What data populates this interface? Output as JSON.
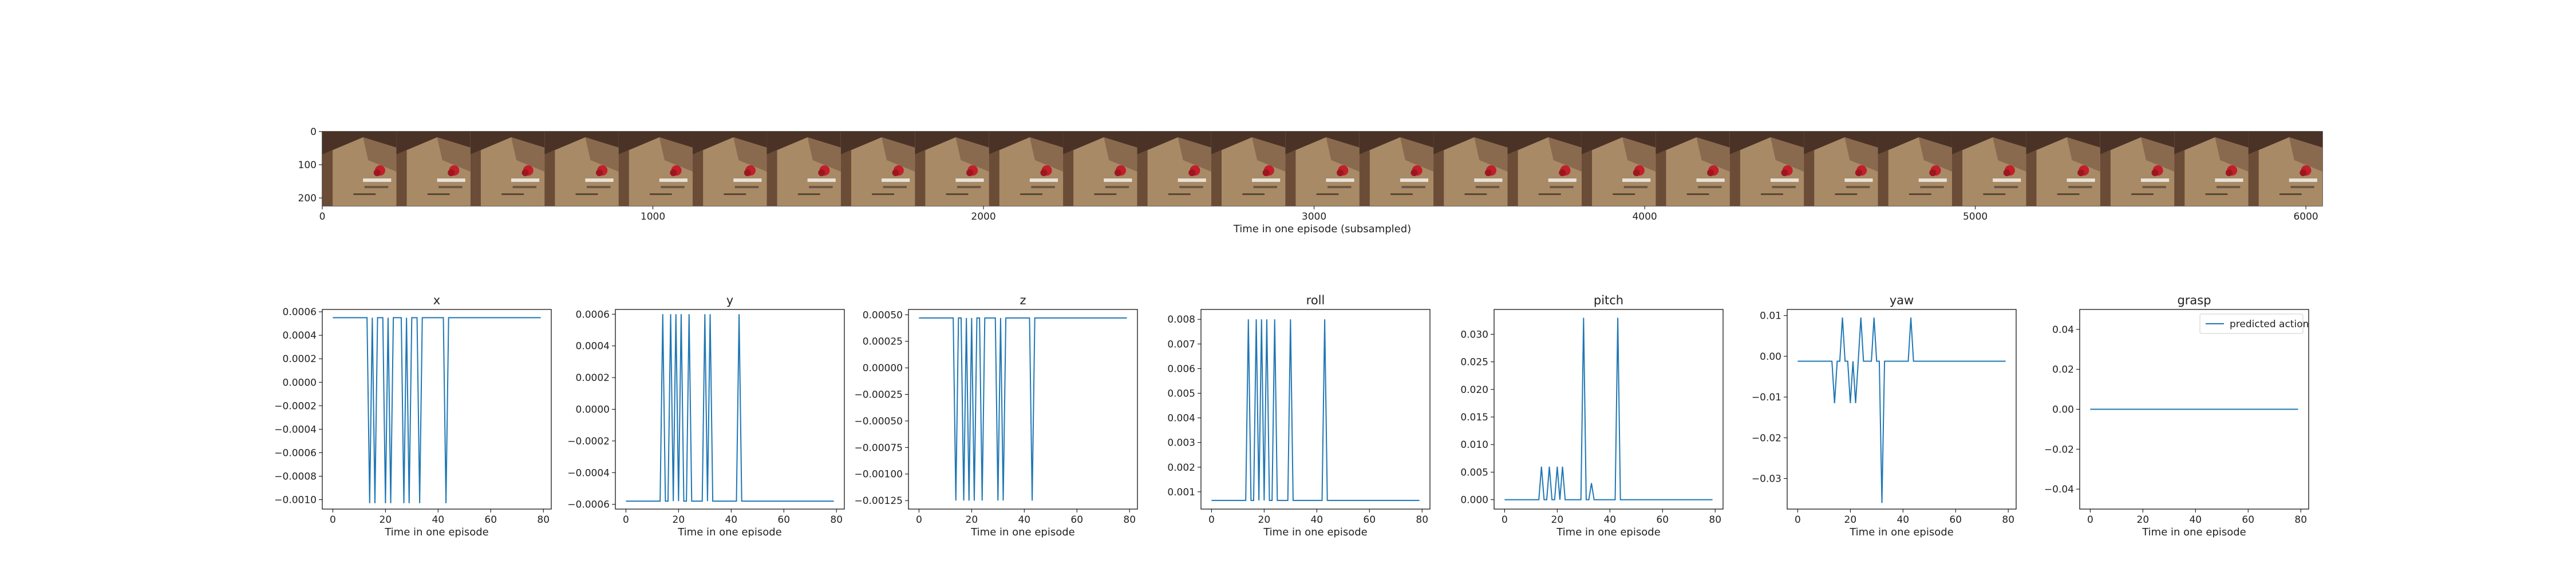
{
  "chart_data": [
    {
      "type": "image_strip",
      "xlabel": "Time in one episode (subsampled)",
      "xticks": [
        0,
        1000,
        2000,
        3000,
        4000,
        5000,
        6000
      ],
      "yticks": [
        0,
        100,
        200
      ],
      "xlim": [
        0,
        6050
      ],
      "ylim": [
        224,
        0
      ],
      "frames": 27,
      "colors": {
        "table": "#a88a66",
        "wall": "#4a3326",
        "object": "#c21f2a",
        "shelf": "#e9e2d6"
      }
    },
    {
      "type": "line",
      "title": "x",
      "xlabel": "Time in one episode",
      "x_range": [
        0,
        79
      ],
      "xlim": [
        -4,
        83
      ],
      "ylim": [
        -0.00108,
        0.00062
      ],
      "yticks": [
        0.0006,
        0.0004,
        0.0002,
        0.0,
        -0.0002,
        -0.0004,
        -0.0006,
        -0.0008,
        -0.001
      ],
      "ytick_labels": [
        "0.0006",
        "0.0004",
        "0.0002",
        "0.0000",
        "−0.0002",
        "−0.0004",
        "−0.0006",
        "−0.0008",
        "−0.0010"
      ],
      "xticks": [
        0,
        20,
        40,
        60,
        80
      ],
      "series": [
        {
          "baseline": 0.00055,
          "spikes": [
            [
              14,
              -0.00103
            ],
            [
              16,
              -0.00103
            ],
            [
              20,
              -0.00103
            ],
            [
              22,
              -0.00103
            ],
            [
              27,
              -0.00103
            ],
            [
              29,
              -0.00103
            ],
            [
              33,
              -0.00103
            ],
            [
              43,
              -0.00103
            ]
          ]
        }
      ]
    },
    {
      "type": "line",
      "title": "y",
      "xlabel": "Time in one episode",
      "x_range": [
        0,
        79
      ],
      "xlim": [
        -4,
        83
      ],
      "ylim": [
        -0.00063,
        0.00063
      ],
      "yticks": [
        0.0006,
        0.0004,
        0.0002,
        0.0,
        -0.0002,
        -0.0004,
        -0.0006
      ],
      "ytick_labels": [
        "0.0006",
        "0.0004",
        "0.0002",
        "0.0000",
        "−0.0002",
        "−0.0004",
        "−0.0006"
      ],
      "xticks": [
        0,
        20,
        40,
        60,
        80
      ],
      "series": [
        {
          "baseline": -0.00058,
          "spikes": [
            [
              14,
              0.0006
            ],
            [
              17,
              0.0006
            ],
            [
              19,
              0.0006
            ],
            [
              21,
              0.0006
            ],
            [
              24,
              0.0006
            ],
            [
              30,
              0.0006
            ],
            [
              32,
              0.0006
            ],
            [
              43,
              0.0006
            ]
          ]
        }
      ]
    },
    {
      "type": "line",
      "title": "z",
      "xlabel": "Time in one episode",
      "x_range": [
        0,
        79
      ],
      "xlim": [
        -4,
        83
      ],
      "ylim": [
        -0.00133,
        0.00055
      ],
      "yticks": [
        0.0005,
        0.00025,
        0.0,
        -0.00025,
        -0.0005,
        -0.00075,
        -0.001,
        -0.00125
      ],
      "ytick_labels": [
        "0.00050",
        "0.00025",
        "0.00000",
        "−0.00025",
        "−0.00050",
        "−0.00075",
        "−0.00100",
        "−0.00125"
      ],
      "xticks": [
        0,
        20,
        40,
        60,
        80
      ],
      "series": [
        {
          "baseline": 0.00047,
          "spikes": [
            [
              14,
              -0.00125
            ],
            [
              17,
              -0.00125
            ],
            [
              19,
              -0.00125
            ],
            [
              21,
              -0.00125
            ],
            [
              24,
              -0.00125
            ],
            [
              30,
              -0.00125
            ],
            [
              32,
              -0.00125
            ],
            [
              43,
              -0.00125
            ]
          ]
        }
      ]
    },
    {
      "type": "line",
      "title": "roll",
      "xlabel": "Time in one episode",
      "x_range": [
        0,
        79
      ],
      "xlim": [
        -4,
        83
      ],
      "ylim": [
        0.0003,
        0.0084
      ],
      "yticks": [
        0.008,
        0.007,
        0.006,
        0.005,
        0.004,
        0.003,
        0.002,
        0.001
      ],
      "ytick_labels": [
        "0.008",
        "0.007",
        "0.006",
        "0.005",
        "0.004",
        "0.003",
        "0.002",
        "0.001"
      ],
      "xticks": [
        0,
        20,
        40,
        60,
        80
      ],
      "series": [
        {
          "baseline": 0.00065,
          "spikes": [
            [
              14,
              0.008
            ],
            [
              17,
              0.008
            ],
            [
              19,
              0.008
            ],
            [
              21,
              0.008
            ],
            [
              24,
              0.008
            ],
            [
              30,
              0.008
            ],
            [
              43,
              0.008
            ]
          ]
        }
      ]
    },
    {
      "type": "line",
      "title": "pitch",
      "xlabel": "Time in one episode",
      "x_range": [
        0,
        79
      ],
      "xlim": [
        -4,
        83
      ],
      "ylim": [
        -0.0017,
        0.0345
      ],
      "yticks": [
        0.03,
        0.025,
        0.02,
        0.015,
        0.01,
        0.005,
        0.0
      ],
      "ytick_labels": [
        "0.030",
        "0.025",
        "0.020",
        "0.015",
        "0.010",
        "0.005",
        "0.000"
      ],
      "xticks": [
        0,
        20,
        40,
        60,
        80
      ],
      "series": [
        {
          "baseline": 0.0,
          "spikes": [
            [
              14,
              0.006
            ],
            [
              17,
              0.006
            ],
            [
              20,
              0.006
            ],
            [
              22,
              0.006
            ],
            [
              30,
              0.033
            ],
            [
              33,
              0.003
            ],
            [
              43,
              0.033
            ]
          ]
        }
      ]
    },
    {
      "type": "line",
      "title": "yaw",
      "xlabel": "Time in one episode",
      "x_range": [
        0,
        79
      ],
      "xlim": [
        -4,
        83
      ],
      "ylim": [
        -0.0375,
        0.0115
      ],
      "yticks": [
        0.01,
        0.0,
        -0.01,
        -0.02,
        -0.03
      ],
      "ytick_labels": [
        "0.01",
        "0.00",
        "−0.01",
        "−0.02",
        "−0.03"
      ],
      "xticks": [
        0,
        20,
        40,
        60,
        80
      ],
      "series": [
        {
          "baseline": -0.0012,
          "spikes": [
            [
              14,
              -0.0115
            ],
            [
              17,
              0.0095
            ],
            [
              20,
              -0.0115
            ],
            [
              22,
              -0.0115
            ],
            [
              24,
              0.0095
            ],
            [
              29,
              0.0095
            ],
            [
              32,
              -0.036
            ],
            [
              43,
              0.0095
            ]
          ]
        }
      ]
    },
    {
      "type": "line",
      "title": "grasp",
      "xlabel": "Time in one episode",
      "x_range": [
        0,
        79
      ],
      "xlim": [
        -4,
        83
      ],
      "ylim": [
        -0.05,
        0.05
      ],
      "yticks": [
        0.04,
        0.02,
        0.0,
        -0.02,
        -0.04
      ],
      "ytick_labels": [
        "0.04",
        "0.02",
        "0.00",
        "−0.02",
        "−0.04"
      ],
      "xticks": [
        0,
        20,
        40,
        60,
        80
      ],
      "legend": {
        "label": "predicted action",
        "placement": "top-right"
      },
      "series": [
        {
          "name": "predicted action",
          "baseline": 0.0,
          "spikes": []
        }
      ]
    }
  ],
  "line_color": "#1f77b4"
}
